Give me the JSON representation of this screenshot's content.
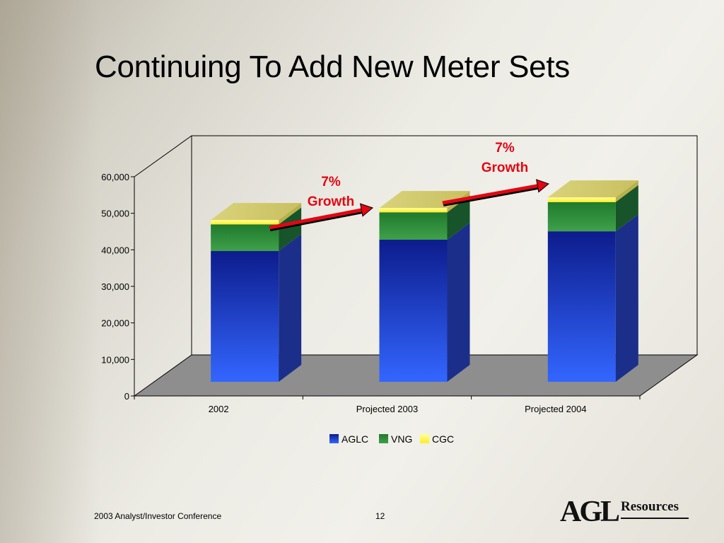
{
  "slide": {
    "title": "Continuing To Add New Meter Sets",
    "footer_text": "2003 Analyst/Investor Conference",
    "page_number": "12",
    "logo_mark": "AGL",
    "logo_word": "Resources"
  },
  "chart_data": {
    "type": "bar",
    "stacked": true,
    "three_d": true,
    "title": "",
    "xlabel": "",
    "ylabel": "",
    "categories": [
      "2002",
      "Projected 2003",
      "Projected 2004"
    ],
    "series": [
      {
        "name": "AGLC",
        "values": [
          35800,
          38900,
          41200
        ],
        "color": "#2f5cf5"
      },
      {
        "name": "VNG",
        "values": [
          7300,
          7500,
          8000
        ],
        "color": "#2e8b3a"
      },
      {
        "name": "CGC",
        "values": [
          1200,
          1200,
          1300
        ],
        "color": "#ffff55"
      }
    ],
    "ylim": [
      0,
      60000
    ],
    "yticks": [
      0,
      10000,
      20000,
      30000,
      40000,
      50000,
      60000
    ],
    "ytick_labels": [
      "0",
      "10,000",
      "20,000",
      "30,000",
      "40,000",
      "50,000",
      "60,000"
    ],
    "grid": false,
    "legend": {
      "position": "bottom",
      "entries": [
        "AGLC",
        "VNG",
        "CGC"
      ]
    },
    "annotations": [
      {
        "line1": "7%",
        "line2": "Growth",
        "from_category": "2002",
        "to_category": "Projected 2003",
        "color": "#e30613"
      },
      {
        "line1": "7%",
        "line2": "Growth",
        "from_category": "Projected 2003",
        "to_category": "Projected 2004",
        "color": "#e30613"
      }
    ]
  }
}
